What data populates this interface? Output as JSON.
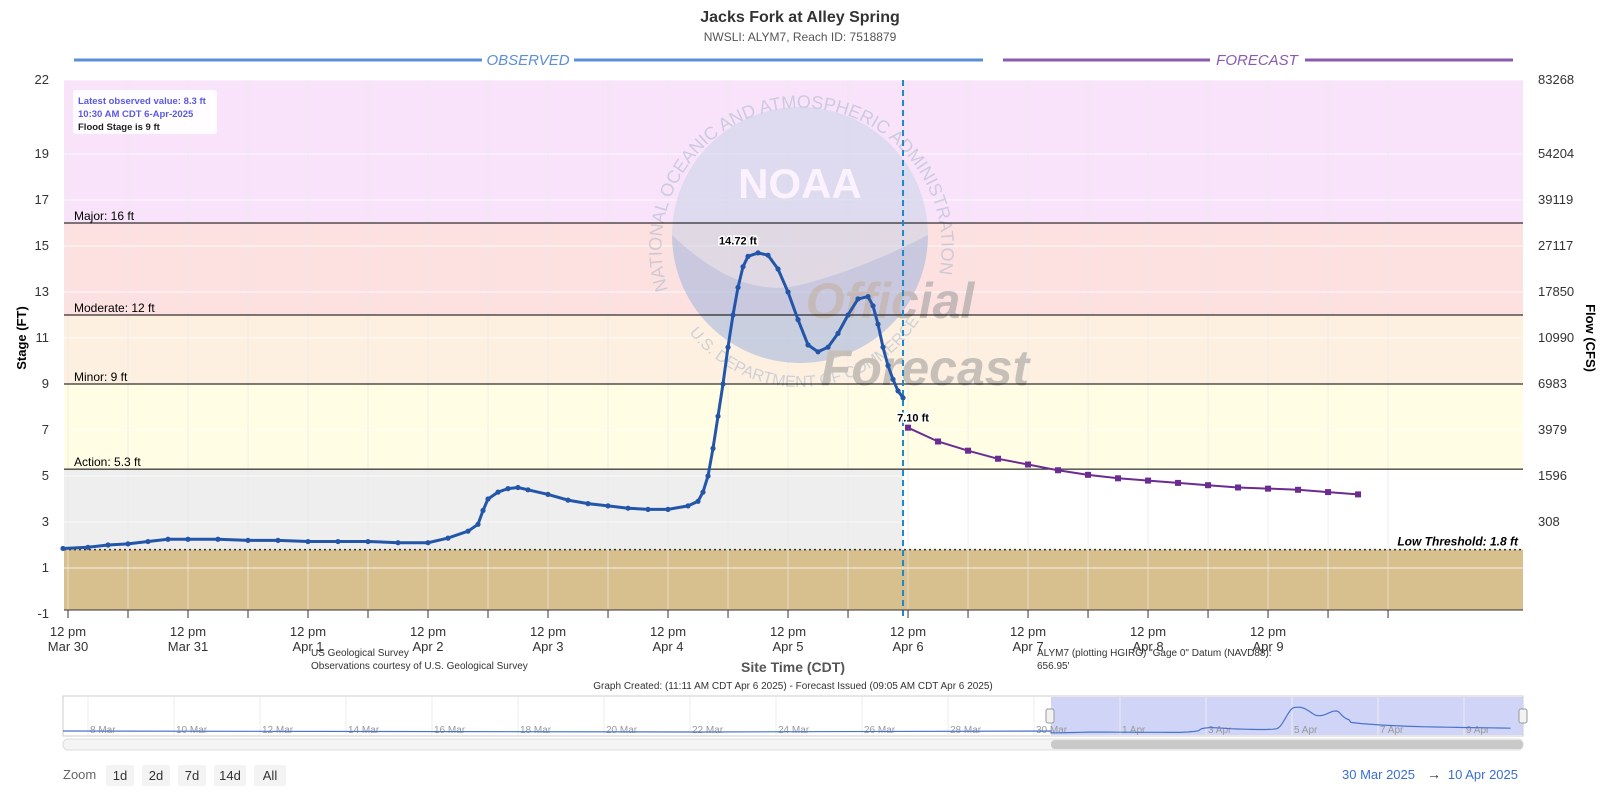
{
  "header": {
    "title": "Jacks Fork at Alley Spring",
    "subtitle": "NWSLI: ALYM7, Reach ID: 7518879"
  },
  "sections": {
    "observed": "OBSERVED",
    "forecast": "FORECAST"
  },
  "info_box": {
    "line1": "Latest observed value: 8.3 ft",
    "line2": "10:30 AM CDT 6-Apr-2025",
    "line3": "Flood Stage is 9 ft"
  },
  "watermark": {
    "noaa": "NOAA",
    "ring": "NATIONAL OCEANIC AND ATMOSPHERIC ADMINISTRATION",
    "ring_bottom": "U.S. DEPARTMENT OF COMMERCE",
    "official": "Official",
    "forecast": "Forecast"
  },
  "footer": {
    "usgs_line1": "US Geological Survey",
    "usgs_line2": "Observations courtesy of U.S. Geological Survey",
    "datum_line1": "ALYM7 (plotting HGIRG) \"Gage 0\" Datum (NAVD88):",
    "datum_line2": "656.95'",
    "created": "Graph Created: (11:11 AM CDT Apr 6 2025) - Forecast Issued (09:05 AM CDT Apr 6 2025)"
  },
  "navigator": {
    "labels": [
      "8 Mar",
      "10 Mar",
      "12 Mar",
      "14 Mar",
      "16 Mar",
      "18 Mar",
      "20 Mar",
      "22 Mar",
      "24 Mar",
      "26 Mar",
      "28 Mar",
      "30 Mar",
      "1 Apr",
      "3 Apr",
      "5 Apr",
      "7 Apr",
      "9 Apr"
    ]
  },
  "zoom": {
    "label": "Zoom",
    "buttons": [
      "1d",
      "2d",
      "7d",
      "14d",
      "All"
    ]
  },
  "range": {
    "from": "30 Mar 2025",
    "arrow": "→",
    "to": "10 Apr 2025"
  },
  "chart_data": {
    "type": "line",
    "xlabel": "Site Time (CDT)",
    "ylabel": "Stage (FT)",
    "ylabel_right": "Flow (CFS)",
    "x_range_hours_from_mar30_noon": [
      -1,
      265
    ],
    "ylim": [
      -1.5,
      22
    ],
    "y_ticks": [
      -1,
      1,
      3,
      5,
      7,
      9,
      11,
      13,
      15,
      17,
      19,
      22
    ],
    "y_right_ticks": [
      {
        "stage": 22,
        "label": "83268"
      },
      {
        "stage": 19,
        "label": "54204"
      },
      {
        "stage": 17,
        "label": "39119"
      },
      {
        "stage": 15,
        "label": "27117"
      },
      {
        "stage": 13,
        "label": "17850"
      },
      {
        "stage": 11,
        "label": "10990"
      },
      {
        "stage": 9,
        "label": "6983"
      },
      {
        "stage": 7,
        "label": "3979"
      },
      {
        "stage": 5,
        "label": "1596"
      },
      {
        "stage": 3,
        "label": "308"
      }
    ],
    "x_ticks": [
      {
        "h": 0,
        "line1": "12 pm",
        "line2": "Mar 30"
      },
      {
        "h": 24,
        "line1": "12 pm",
        "line2": "Mar 31"
      },
      {
        "h": 48,
        "line1": "12 pm",
        "line2": "Apr 1"
      },
      {
        "h": 72,
        "line1": "12 pm",
        "line2": "Apr 2"
      },
      {
        "h": 96,
        "line1": "12 pm",
        "line2": "Apr 3"
      },
      {
        "h": 120,
        "line1": "12 pm",
        "line2": "Apr 4"
      },
      {
        "h": 144,
        "line1": "12 pm",
        "line2": "Apr 5"
      },
      {
        "h": 168,
        "line1": "12 pm",
        "line2": "Apr 6"
      },
      {
        "h": 192,
        "line1": "12 pm",
        "line2": "Apr 7"
      },
      {
        "h": 216,
        "line1": "12 pm",
        "line2": "Apr 8"
      },
      {
        "h": 240,
        "line1": "12 pm",
        "line2": "Apr 9"
      }
    ],
    "flood_bands": [
      {
        "name": "Major: 16 ft",
        "from": 16,
        "to": 22,
        "color": "#f9e3fb"
      },
      {
        "name": "Moderate: 12 ft",
        "from": 12,
        "to": 16,
        "color": "#fde1e1"
      },
      {
        "name": "Minor: 9 ft",
        "from": 9,
        "to": 12,
        "color": "#fdf0e1"
      },
      {
        "name": "Action: 5.3 ft",
        "from": 5.3,
        "to": 9,
        "color": "#fffde3"
      }
    ],
    "low_threshold": {
      "label": "Low Threshold: 1.8 ft",
      "value": 1.8,
      "color": "#d8bf8e"
    },
    "issue_time_h": 167,
    "peak_label": {
      "text": "14.72 ft",
      "h": 134,
      "v": 14.72
    },
    "forecast_label": {
      "text": "7.10 ft",
      "h": 167,
      "v": 7.1
    },
    "series": [
      {
        "name": "Observed",
        "color": "#2356a8",
        "points": [
          [
            -1,
            1.85
          ],
          [
            4,
            1.9
          ],
          [
            8,
            2.0
          ],
          [
            12,
            2.05
          ],
          [
            16,
            2.15
          ],
          [
            20,
            2.25
          ],
          [
            24,
            2.25
          ],
          [
            30,
            2.25
          ],
          [
            36,
            2.2
          ],
          [
            42,
            2.2
          ],
          [
            48,
            2.15
          ],
          [
            54,
            2.15
          ],
          [
            60,
            2.15
          ],
          [
            66,
            2.1
          ],
          [
            72,
            2.1
          ],
          [
            76,
            2.3
          ],
          [
            80,
            2.6
          ],
          [
            82,
            2.9
          ],
          [
            83,
            3.5
          ],
          [
            84,
            4.0
          ],
          [
            86,
            4.3
          ],
          [
            88,
            4.45
          ],
          [
            90,
            4.5
          ],
          [
            92,
            4.4
          ],
          [
            96,
            4.2
          ],
          [
            100,
            3.95
          ],
          [
            104,
            3.8
          ],
          [
            108,
            3.7
          ],
          [
            112,
            3.6
          ],
          [
            116,
            3.55
          ],
          [
            120,
            3.55
          ],
          [
            124,
            3.7
          ],
          [
            126,
            3.9
          ],
          [
            127,
            4.3
          ],
          [
            128,
            5.0
          ],
          [
            129,
            6.2
          ],
          [
            130,
            7.6
          ],
          [
            131,
            9.0
          ],
          [
            132,
            10.6
          ],
          [
            133,
            12.0
          ],
          [
            134,
            13.2
          ],
          [
            135,
            14.1
          ],
          [
            136,
            14.55
          ],
          [
            138,
            14.7
          ],
          [
            140,
            14.6
          ],
          [
            142,
            14.0
          ],
          [
            144,
            13.0
          ],
          [
            146,
            11.8
          ],
          [
            148,
            10.7
          ],
          [
            150,
            10.4
          ],
          [
            152,
            10.6
          ],
          [
            154,
            11.2
          ],
          [
            156,
            12.0
          ],
          [
            158,
            12.7
          ],
          [
            160,
            12.8
          ],
          [
            161,
            12.4
          ],
          [
            162,
            11.6
          ],
          [
            163,
            10.6
          ],
          [
            164,
            9.8
          ],
          [
            165,
            9.2
          ],
          [
            166,
            8.7
          ],
          [
            167,
            8.4
          ]
        ]
      },
      {
        "name": "Forecast",
        "color": "#6a2c91",
        "points": [
          [
            168,
            7.1
          ],
          [
            174,
            6.5
          ],
          [
            180,
            6.1
          ],
          [
            186,
            5.75
          ],
          [
            192,
            5.5
          ],
          [
            198,
            5.25
          ],
          [
            204,
            5.05
          ],
          [
            210,
            4.9
          ],
          [
            216,
            4.8
          ],
          [
            222,
            4.7
          ],
          [
            228,
            4.6
          ],
          [
            234,
            4.5
          ],
          [
            240,
            4.45
          ],
          [
            246,
            4.4
          ],
          [
            252,
            4.3
          ],
          [
            258,
            4.2
          ]
        ]
      }
    ]
  }
}
